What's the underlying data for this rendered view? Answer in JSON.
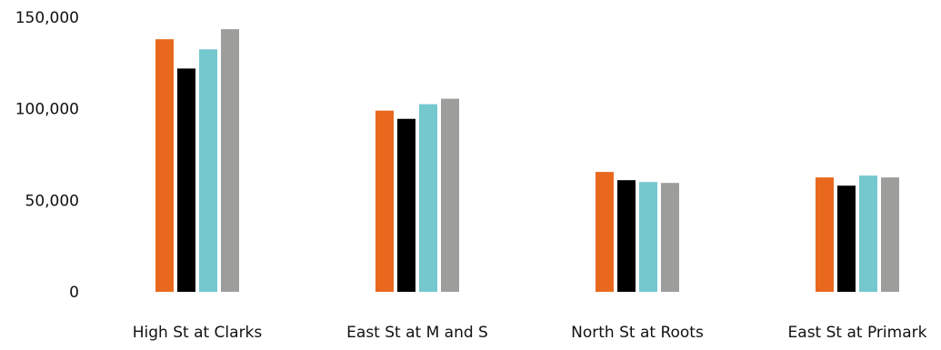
{
  "chart_data": {
    "type": "bar",
    "title": "",
    "xlabel": "",
    "ylabel": "",
    "ylim": [
      0,
      150000
    ],
    "y_ticks": [
      {
        "value": 0,
        "label": "0"
      },
      {
        "value": 50000,
        "label": "50,000"
      },
      {
        "value": 100000,
        "label": "100,000"
      },
      {
        "value": 150000,
        "label": "150,000"
      }
    ],
    "grid": false,
    "legend": "none",
    "categories": [
      "High St at Clarks",
      "East St at M and S",
      "North St at Roots",
      "East St at Primark"
    ],
    "series": [
      {
        "color": "#e8681e",
        "values": [
          138000,
          99000,
          65500,
          62500
        ]
      },
      {
        "color": "#000000",
        "values": [
          122000,
          94500,
          61000,
          58000
        ]
      },
      {
        "color": "#74c8ce",
        "values": [
          132500,
          102500,
          60000,
          63500
        ]
      },
      {
        "color": "#9d9d9b",
        "values": [
          143500,
          105500,
          59500,
          62500
        ]
      }
    ]
  }
}
